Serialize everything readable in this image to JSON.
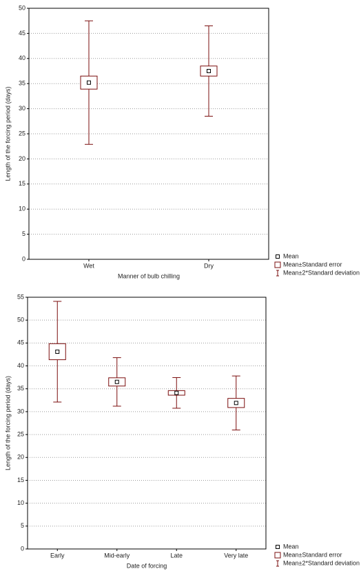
{
  "chart_data": [
    {
      "type": "mean-error",
      "x_label": "Manner of bulb chilling",
      "y_label": "Length of the forcing period (days)",
      "categories": [
        "Wet",
        "Dry"
      ],
      "means": [
        35.2,
        37.5
      ],
      "std_errors": [
        1.3,
        1.0
      ],
      "two_sd": [
        12.3,
        9.0
      ],
      "color": "#7a0c0c",
      "ylim": [
        0,
        50
      ],
      "yticks": [
        0,
        5,
        10,
        15,
        20,
        25,
        30,
        35,
        40,
        45,
        50
      ],
      "grid": true,
      "legend": [
        "Mean",
        "Mean±Standard error",
        "Mean±2*Standard deviation"
      ]
    },
    {
      "type": "mean-error",
      "x_label": "Date of forcing",
      "y_label": "Length of the forcing period (days)",
      "categories": [
        "Early",
        "Mid-early",
        "Late",
        "Very late"
      ],
      "means": [
        43.1,
        36.5,
        34.1,
        31.9
      ],
      "std_errors": [
        1.75,
        0.9,
        0.5,
        1.0
      ],
      "two_sd": [
        11.0,
        5.3,
        3.35,
        5.9
      ],
      "color": "#7a0c0c",
      "ylim": [
        0,
        55
      ],
      "yticks": [
        0,
        5,
        10,
        15,
        20,
        25,
        30,
        35,
        40,
        45,
        50,
        55
      ],
      "grid": true,
      "legend": [
        "Mean",
        "Mean±Standard error",
        "Mean±2*Standard deviation"
      ]
    }
  ]
}
